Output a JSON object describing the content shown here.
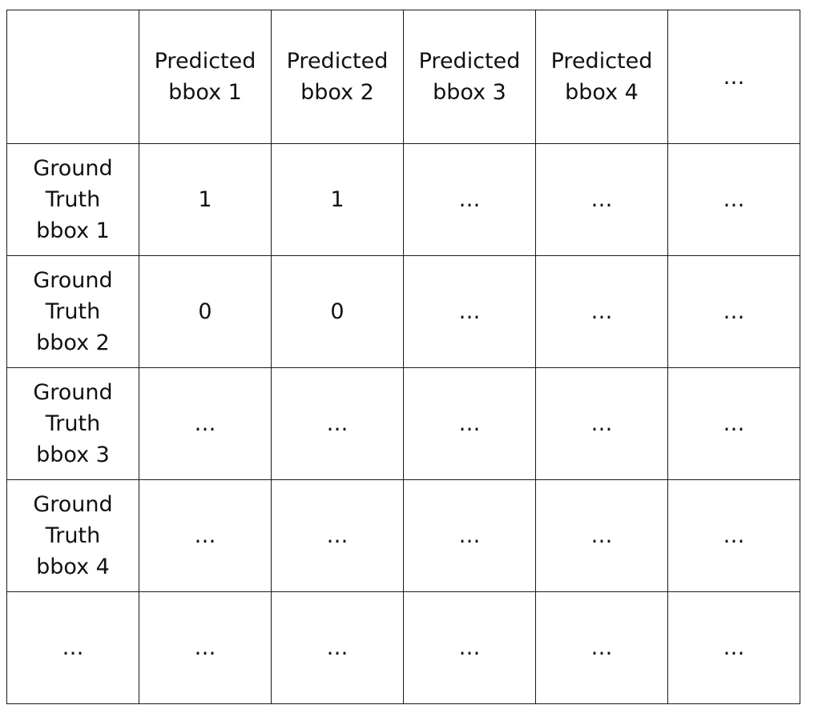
{
  "table": {
    "header": [
      "",
      "Predicted\nbbox 1",
      "Predicted\nbbox 2",
      "Predicted\nbbox 3",
      "Predicted\nbbox 4",
      "…"
    ],
    "rows": [
      [
        "Ground\nTruth\nbbox 1",
        "1",
        "1",
        "…",
        "…",
        "…"
      ],
      [
        "Ground\nTruth\nbbox 2",
        "0",
        "0",
        "…",
        "…",
        "…"
      ],
      [
        "Ground\nTruth\nbbox 3",
        "…",
        "…",
        "…",
        "…",
        "…"
      ],
      [
        "Ground\nTruth\nbbox 4",
        "…",
        "…",
        "…",
        "…",
        "…"
      ],
      [
        "…",
        "…",
        "…",
        "…",
        "…",
        "…"
      ]
    ]
  }
}
